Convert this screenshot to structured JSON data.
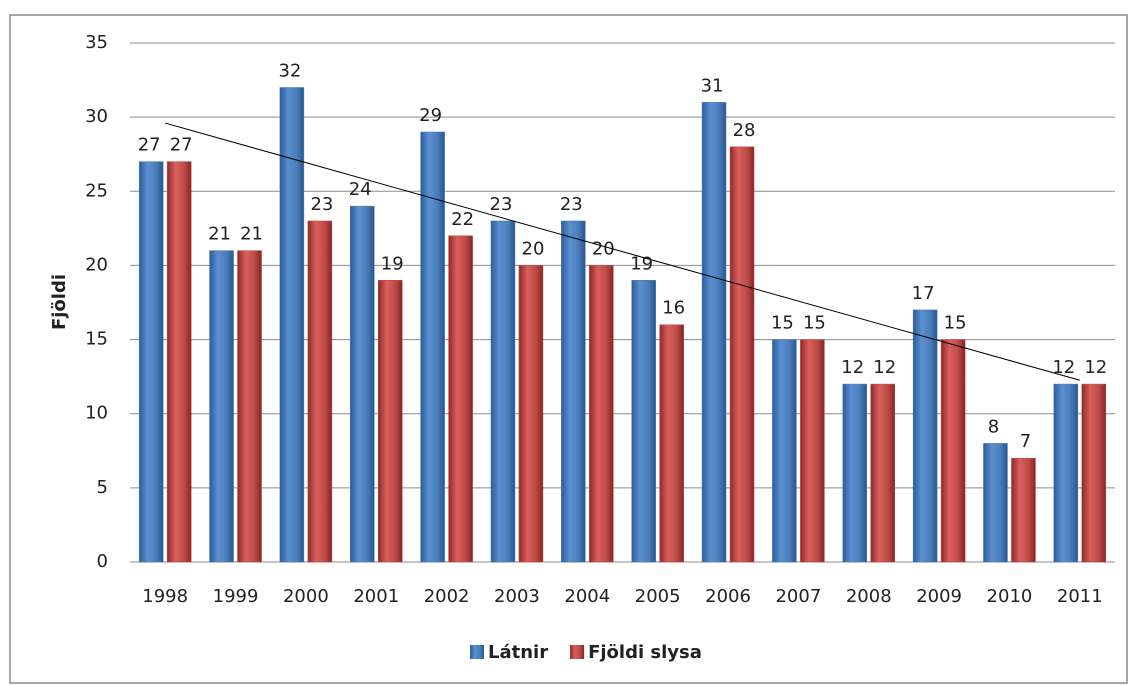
{
  "chart_data": {
    "type": "bar",
    "y_label": "Fjöldi",
    "categories": [
      "1998",
      "1999",
      "2000",
      "2001",
      "2002",
      "2003",
      "2004",
      "2005",
      "2006",
      "2007",
      "2008",
      "2009",
      "2010",
      "2011"
    ],
    "series": [
      {
        "name": "Látnir",
        "color": "#4a7ebb",
        "values": [
          27,
          21,
          32,
          24,
          29,
          23,
          23,
          19,
          31,
          15,
          12,
          17,
          8,
          12
        ]
      },
      {
        "name": "Fjöldi slysa",
        "color": "#be4b48",
        "values": [
          27,
          21,
          23,
          19,
          22,
          20,
          20,
          16,
          28,
          15,
          12,
          15,
          7,
          12
        ]
      }
    ],
    "ylim": [
      0,
      35
    ],
    "yticks": [
      0,
      5,
      10,
      15,
      20,
      25,
      30,
      35
    ],
    "grid": true,
    "trendline": true,
    "legend": "bottom"
  }
}
